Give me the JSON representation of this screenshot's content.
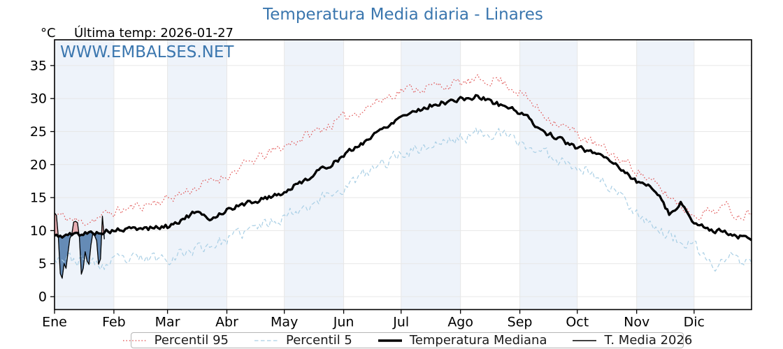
{
  "header": {
    "last_temp_annotation": "Última temp: 2026-01-27",
    "watermark": "WWW.EMBALSES.NET",
    "accent_color": "#3a76ae"
  },
  "chart_data": {
    "type": "line",
    "title": "Temperatura Media diaria - Linares",
    "ylabel": "°C",
    "xlabel": "",
    "ylim": [
      -2,
      38.9
    ],
    "yticks": [
      0,
      5,
      10,
      15,
      20,
      25,
      30,
      35
    ],
    "x_months": [
      "Ene",
      "Feb",
      "Mar",
      "Abr",
      "May",
      "Jun",
      "Jul",
      "Ago",
      "Sep",
      "Oct",
      "Nov",
      "Dic"
    ],
    "month_days": [
      31,
      28,
      31,
      30,
      31,
      30,
      31,
      31,
      30,
      31,
      30,
      31
    ],
    "grid": true,
    "grid_color": "#e7e7e7",
    "band_color": "#eef3fa",
    "legend_position": "bottom",
    "series": [
      {
        "name": "Percentil 95",
        "style": "dotted",
        "color": "#e05252",
        "width": 1.2,
        "noise": 0.7,
        "seed": 11,
        "anchors": [
          [
            0,
            12.5
          ],
          [
            14,
            11.2
          ],
          [
            31,
            12.8
          ],
          [
            59,
            14.8
          ],
          [
            90,
            18.4
          ],
          [
            104,
            20.6
          ],
          [
            120,
            22.8
          ],
          [
            151,
            27.0
          ],
          [
            181,
            31.3
          ],
          [
            212,
            32.3
          ],
          [
            231,
            33.0
          ],
          [
            243,
            31.0
          ],
          [
            255,
            27.7
          ],
          [
            273,
            24.6
          ],
          [
            304,
            19.3
          ],
          [
            318,
            15.8
          ],
          [
            334,
            12.4
          ],
          [
            351,
            13.6
          ],
          [
            357,
            12.2
          ],
          [
            364,
            13.0
          ]
        ]
      },
      {
        "name": "Percentil 5",
        "style": "dashed",
        "color": "#a9cfe5",
        "width": 1.2,
        "noise": 0.85,
        "seed": 23,
        "anchors": [
          [
            0,
            6.3
          ],
          [
            26,
            4.6
          ],
          [
            31,
            5.3
          ],
          [
            59,
            6.0
          ],
          [
            90,
            8.6
          ],
          [
            120,
            12.3
          ],
          [
            151,
            16.5
          ],
          [
            181,
            21.8
          ],
          [
            212,
            24.0
          ],
          [
            227,
            25.2
          ],
          [
            243,
            23.3
          ],
          [
            261,
            21.0
          ],
          [
            273,
            20.0
          ],
          [
            289,
            17.0
          ],
          [
            304,
            13.0
          ],
          [
            318,
            9.6
          ],
          [
            334,
            7.4
          ],
          [
            346,
            4.2
          ],
          [
            353,
            6.8
          ],
          [
            359,
            4.8
          ],
          [
            364,
            5.4
          ]
        ]
      },
      {
        "name": "Temperatura Mediana",
        "style": "solid",
        "color": "#000000",
        "width": 3.3,
        "noise": 0.35,
        "seed": 5,
        "anchors": [
          [
            0,
            9.1
          ],
          [
            31,
            10.0
          ],
          [
            59,
            10.6
          ],
          [
            74,
            12.8
          ],
          [
            80,
            11.6
          ],
          [
            90,
            13.2
          ],
          [
            120,
            15.8
          ],
          [
            151,
            21.3
          ],
          [
            181,
            27.4
          ],
          [
            199,
            29.2
          ],
          [
            221,
            30.3
          ],
          [
            243,
            28.0
          ],
          [
            255,
            25.1
          ],
          [
            273,
            22.5
          ],
          [
            288,
            21.3
          ],
          [
            304,
            17.4
          ],
          [
            314,
            16.3
          ],
          [
            321,
            12.6
          ],
          [
            324,
            13.1
          ],
          [
            327,
            14.3
          ],
          [
            332,
            12.2
          ],
          [
            334,
            10.9
          ],
          [
            344,
            10.2
          ],
          [
            364,
            8.6
          ]
        ]
      },
      {
        "name": "T. Media 2026",
        "style": "solid",
        "color": "#000000",
        "width": 1.3,
        "noise": 0,
        "seed": 0,
        "daily": [
          12.7,
          12.3,
          9.0,
          3.5,
          2.8,
          5.0,
          4.3,
          6.6,
          8.8,
          9.4,
          11.3,
          11.4,
          11.2,
          8.9,
          3.4,
          4.3,
          6.8,
          5.4,
          4.9,
          7.8,
          9.6,
          9.2,
          8.5,
          4.9,
          5.7,
          12.2,
          8.7
        ]
      }
    ],
    "fills": {
      "above_color": "rgba(228,118,122,0.55)",
      "above_edge": "#b84a4a",
      "below_color": "rgba(66,112,165,0.8)",
      "below_edge": "#2f5d91"
    }
  },
  "legend": {
    "items": [
      {
        "label": "Percentil 95",
        "style": "dotted",
        "color": "#e05252",
        "width": 1.3
      },
      {
        "label": "Percentil 5",
        "style": "dashed",
        "color": "#a9cfe5",
        "width": 1.3
      },
      {
        "label": "Temperatura Mediana",
        "style": "solid",
        "color": "#000000",
        "width": 3.6
      },
      {
        "label": "T. Media 2026",
        "style": "solid",
        "color": "#000000",
        "width": 1.4
      }
    ]
  }
}
